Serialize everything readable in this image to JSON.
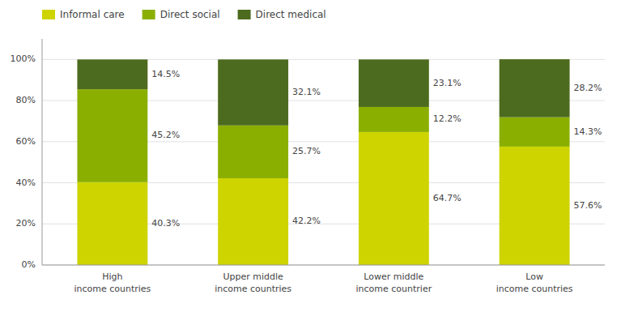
{
  "chart_data": {
    "type": "bar",
    "stacked": true,
    "categories": [
      "High\nincome countries",
      "Upper middle\nincome countries",
      "Lower middle\nincome countrier",
      "Low\nincome countries"
    ],
    "series": [
      {
        "name": "Informal care",
        "color": "#cdd400",
        "values": [
          40.3,
          42.2,
          64.7,
          57.6
        ],
        "value_labels": [
          "40.3%",
          "42.2%",
          "64.7%",
          "57.6%"
        ]
      },
      {
        "name": "Direct social",
        "color": "#8aaf00",
        "values": [
          45.2,
          25.7,
          12.2,
          14.3
        ],
        "value_labels": [
          "45.2%",
          "25.7%",
          "12.2%",
          "14.3%"
        ]
      },
      {
        "name": "Direct medical",
        "color": "#4d6b1e",
        "values": [
          14.5,
          32.1,
          23.1,
          28.2
        ],
        "value_labels": [
          "14.5%",
          "32.1%",
          "23.1%",
          "28.2%"
        ]
      }
    ],
    "ylim": [
      0,
      110
    ],
    "yticks": [
      {
        "value": 0,
        "label": "0%"
      },
      {
        "value": 20,
        "label": "20%"
      },
      {
        "value": 40,
        "label": "40%"
      },
      {
        "value": 60,
        "label": "60%"
      },
      {
        "value": 80,
        "label": "80%"
      },
      {
        "value": 100,
        "label": "100%"
      }
    ],
    "grid": true,
    "legend": "upper left",
    "data_labels": true
  }
}
